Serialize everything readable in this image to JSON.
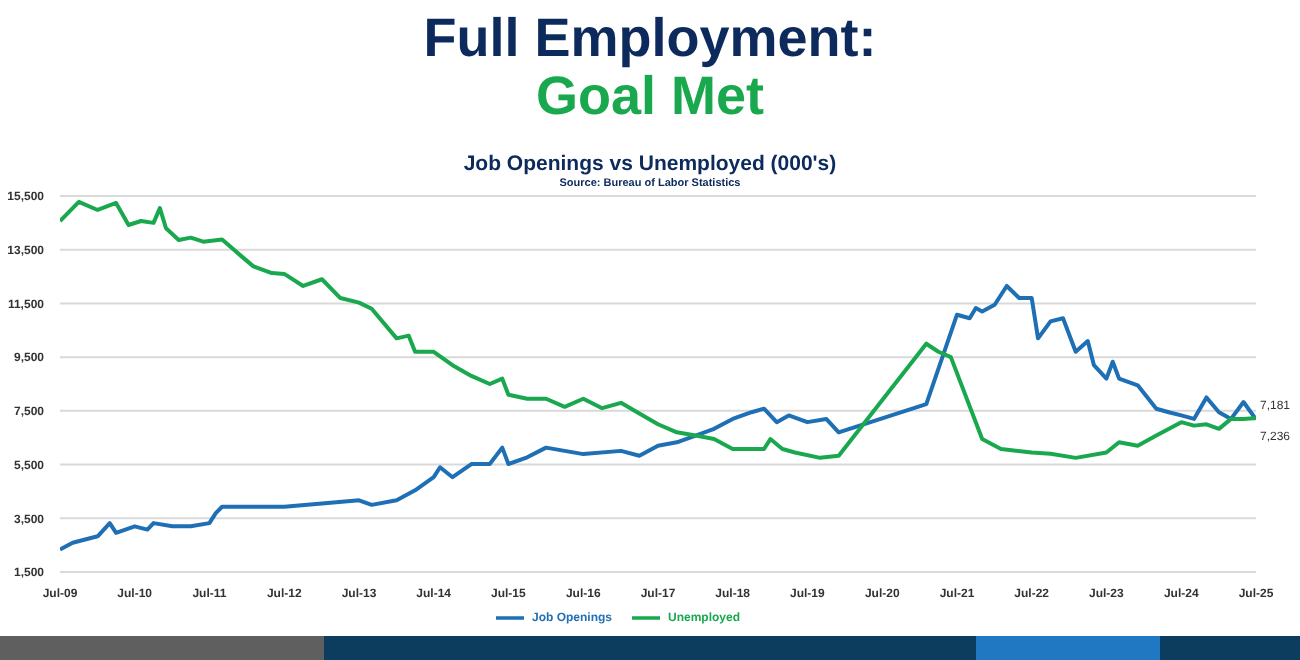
{
  "chart_data": {
    "type": "line",
    "title": "Full Employment:",
    "subtitle": "Goal Met",
    "annotations": [
      "Job Openings vs Unemployed (000's)",
      "Source: Bureau of Labor Statistics",
      "7,181",
      "7,236"
    ],
    "series": [
      {
        "name": "Job Openings",
        "color": "#1f6fb5",
        "x": [
          "2009-07",
          "2009-09",
          "2010-01",
          "2010-03",
          "2010-04",
          "2010-07",
          "2010-09",
          "2010-10",
          "2011-01",
          "2011-04",
          "2011-07",
          "2011-08",
          "2011-09",
          "2012-01",
          "2012-07",
          "2013-01",
          "2013-07",
          "2013-09",
          "2014-01",
          "2014-04",
          "2014-07",
          "2014-08",
          "2014-10",
          "2015-01",
          "2015-04",
          "2015-06",
          "2015-07",
          "2015-10",
          "2016-01",
          "2016-07",
          "2017-01",
          "2017-04",
          "2017-07",
          "2017-10",
          "2018-01",
          "2018-04",
          "2018-07",
          "2018-10",
          "2018-12",
          "2019-02",
          "2019-04",
          "2019-07",
          "2019-10",
          "2019-12",
          "2021-02",
          "2021-07",
          "2021-09",
          "2021-10",
          "2021-11",
          "2022-01",
          "2022-03",
          "2022-05",
          "2022-07",
          "2022-08",
          "2022-10",
          "2022-12",
          "2023-02",
          "2023-04",
          "2023-05",
          "2023-07",
          "2023-08",
          "2023-09",
          "2023-12",
          "2024-03",
          "2024-05",
          "2024-07",
          "2024-09",
          "2024-11",
          "2025-01",
          "2025-03",
          "2025-05",
          "2025-07"
        ],
        "values": [
          2340,
          2590,
          2830,
          3320,
          2960,
          3200,
          3080,
          3320,
          3200,
          3200,
          3320,
          3690,
          3930,
          3930,
          3930,
          4050,
          4170,
          4000,
          4170,
          4540,
          5030,
          5400,
          5030,
          5520,
          5520,
          6130,
          5520,
          5770,
          6130,
          5890,
          6010,
          5830,
          6200,
          6330,
          6580,
          6830,
          7200,
          7450,
          7580,
          7080,
          7330,
          7080,
          7200,
          6700,
          7750,
          11080,
          10950,
          11330,
          11200,
          11450,
          12150,
          11700,
          11700,
          10200,
          10830,
          10950,
          9700,
          10100,
          9200,
          8700,
          9330,
          8700,
          8450,
          7580,
          7450,
          7330,
          7200,
          8000,
          7450,
          7200,
          7830,
          7181
        ]
      },
      {
        "name": "Unemployed",
        "color": "#1aa84f",
        "x": [
          "2009-07",
          "2009-10",
          "2010-01",
          "2010-04",
          "2010-06",
          "2010-08",
          "2010-10",
          "2010-11",
          "2010-12",
          "2011-02",
          "2011-04",
          "2011-06",
          "2011-09",
          "2011-12",
          "2012-02",
          "2012-05",
          "2012-07",
          "2012-10",
          "2013-01",
          "2013-04",
          "2013-07",
          "2013-09",
          "2014-01",
          "2014-03",
          "2014-04",
          "2014-07",
          "2014-10",
          "2015-01",
          "2015-04",
          "2015-06",
          "2015-07",
          "2015-10",
          "2016-01",
          "2016-04",
          "2016-07",
          "2016-10",
          "2017-01",
          "2017-04",
          "2017-07",
          "2017-10",
          "2018-01",
          "2018-04",
          "2018-07",
          "2018-12",
          "2019-01",
          "2019-03",
          "2019-05",
          "2019-09",
          "2019-12",
          "2021-02",
          "2021-04",
          "2021-06",
          "2021-11",
          "2022-02",
          "2022-07",
          "2022-10",
          "2023-02",
          "2023-07",
          "2023-09",
          "2023-12",
          "2024-03",
          "2024-07",
          "2024-09",
          "2024-11",
          "2025-01",
          "2025-03",
          "2025-05",
          "2025-07"
        ],
        "values": [
          14570,
          15280,
          14980,
          15240,
          14420,
          14570,
          14500,
          15050,
          14300,
          13860,
          13950,
          13800,
          13880,
          13280,
          12880,
          12630,
          12600,
          12150,
          12400,
          11700,
          11530,
          11300,
          10200,
          10300,
          9700,
          9700,
          9200,
          8800,
          8500,
          8700,
          8100,
          7950,
          7950,
          7650,
          7950,
          7600,
          7800,
          7400,
          7000,
          6700,
          6580,
          6450,
          6080,
          6080,
          6450,
          6080,
          5950,
          5750,
          5830,
          10000,
          9700,
          9500,
          6450,
          6080,
          5950,
          5900,
          5750,
          5950,
          6330,
          6200,
          6580,
          7080,
          6950,
          7000,
          6830,
          7200,
          7200,
          7236
        ]
      }
    ],
    "xlim": [
      "2009-07",
      "2025-07"
    ],
    "xticks": [
      {
        "value": "2009-07",
        "label": "Jul-09"
      },
      {
        "value": "2010-07",
        "label": "Jul-10"
      },
      {
        "value": "2011-07",
        "label": "Jul-11"
      },
      {
        "value": "2012-07",
        "label": "Jul-12"
      },
      {
        "value": "2013-07",
        "label": "Jul-13"
      },
      {
        "value": "2014-07",
        "label": "Jul-14"
      },
      {
        "value": "2015-07",
        "label": "Jul-15"
      },
      {
        "value": "2016-07",
        "label": "Jul-16"
      },
      {
        "value": "2017-07",
        "label": "Jul-17"
      },
      {
        "value": "2018-07",
        "label": "Jul-18"
      },
      {
        "value": "2019-07",
        "label": "Jul-19"
      },
      {
        "value": "2020-07",
        "label": "Jul-20"
      },
      {
        "value": "2021-07",
        "label": "Jul-21"
      },
      {
        "value": "2022-07",
        "label": "Jul-22"
      },
      {
        "value": "2023-07",
        "label": "Jul-23"
      },
      {
        "value": "2024-07",
        "label": "Jul-24"
      },
      {
        "value": "2025-07",
        "label": "Jul-25"
      }
    ],
    "ylim": [
      1500,
      15500
    ],
    "yticks": [
      {
        "value": 1500,
        "label": "1,500"
      },
      {
        "value": 3500,
        "label": "3,500"
      },
      {
        "value": 5500,
        "label": "5,500"
      },
      {
        "value": 7500,
        "label": "7,500"
      },
      {
        "value": 9500,
        "label": "9,500"
      },
      {
        "value": 11500,
        "label": "11,500"
      },
      {
        "value": 13500,
        "label": "13,500"
      },
      {
        "value": 15500,
        "label": "15,500"
      }
    ],
    "grid": "y",
    "legend": "bottom",
    "marker": "none",
    "line_style": "solid"
  }
}
